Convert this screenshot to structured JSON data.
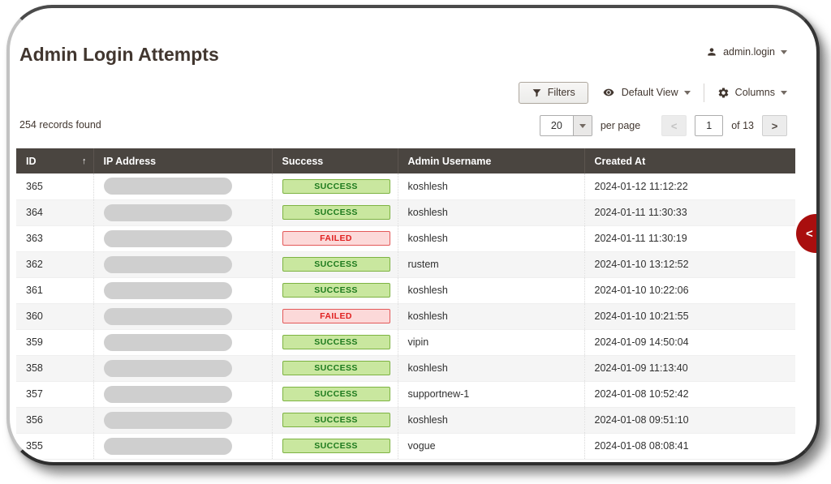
{
  "page": {
    "title": "Admin Login Attempts"
  },
  "user_menu": {
    "label": "admin.login"
  },
  "toolbar": {
    "filters_label": "Filters",
    "default_view_label": "Default View",
    "columns_label": "Columns"
  },
  "summary": {
    "records_found": "254 records found"
  },
  "pagination": {
    "per_page_value": "20",
    "per_page_label": "per page",
    "prev_icon": "<",
    "current_page": "1",
    "total_pages_label": "of 13",
    "next_icon": ">"
  },
  "table": {
    "columns": [
      "ID",
      "IP Address",
      "Success",
      "Admin Username",
      "Created At"
    ],
    "sort_icon": "↑",
    "rows": [
      {
        "id": "365",
        "ip_redacted": true,
        "status": "SUCCESS",
        "username": "koshlesh",
        "created_at": "2024-01-12 11:12:22"
      },
      {
        "id": "364",
        "ip_redacted": true,
        "status": "SUCCESS",
        "username": "koshlesh",
        "created_at": "2024-01-11 11:30:33"
      },
      {
        "id": "363",
        "ip_redacted": true,
        "status": "FAILED",
        "username": "koshlesh",
        "created_at": "2024-01-11 11:30:19"
      },
      {
        "id": "362",
        "ip_redacted": true,
        "status": "SUCCESS",
        "username": "rustem",
        "created_at": "2024-01-10 13:12:52"
      },
      {
        "id": "361",
        "ip_redacted": true,
        "status": "SUCCESS",
        "username": "koshlesh",
        "created_at": "2024-01-10 10:22:06"
      },
      {
        "id": "360",
        "ip_redacted": true,
        "status": "FAILED",
        "username": "koshlesh",
        "created_at": "2024-01-10 10:21:55"
      },
      {
        "id": "359",
        "ip_redacted": true,
        "status": "SUCCESS",
        "username": "vipin",
        "created_at": "2024-01-09 14:50:04"
      },
      {
        "id": "358",
        "ip_redacted": true,
        "status": "SUCCESS",
        "username": "koshlesh",
        "created_at": "2024-01-09 11:13:40"
      },
      {
        "id": "357",
        "ip_redacted": true,
        "status": "SUCCESS",
        "username": "supportnew-1",
        "created_at": "2024-01-08 10:52:42"
      },
      {
        "id": "356",
        "ip_redacted": true,
        "status": "SUCCESS",
        "username": "koshlesh",
        "created_at": "2024-01-08 09:51:10"
      },
      {
        "id": "355",
        "ip_redacted": true,
        "status": "SUCCESS",
        "username": "vogue",
        "created_at": "2024-01-08 08:08:41"
      }
    ]
  },
  "panel_toggle": {
    "icon": "<"
  },
  "icons": {
    "user": "person-icon",
    "filters": "funnel-icon",
    "default_view": "eye-icon",
    "columns": "gear-icon",
    "sort": "arrow-up-icon",
    "panel_toggle": "chevron-left-icon"
  },
  "colors": {
    "grid_header_bg": "#4a4540",
    "success_bg": "#c9e79f",
    "success_border": "#7db342",
    "success_text": "#1d7a1d",
    "failed_bg": "#fcd9d9",
    "failed_border": "#e35959",
    "failed_text": "#e02020",
    "accent_red": "#a90e0e",
    "text_primary": "#41362f"
  }
}
